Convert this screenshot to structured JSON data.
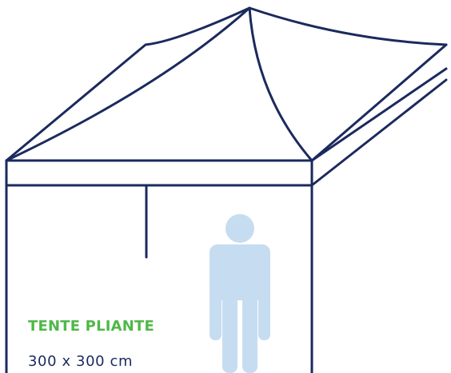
{
  "product": {
    "name": "TENTE PLIANTE",
    "dimensions": "300 x 300 cm"
  },
  "colors": {
    "outline": "#1b2a5e",
    "person": "#c6dcf1",
    "title": "#4fb848",
    "dimensions": "#1b2a5e"
  },
  "icons": {
    "tent": "folding-tent-outline",
    "person": "standing-person-silhouette"
  }
}
